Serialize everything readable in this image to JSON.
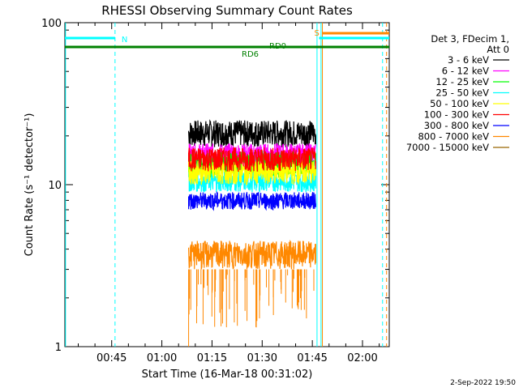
{
  "chart_data": {
    "type": "line",
    "title": "RHESSI Observing Summary Count Rates",
    "xlabel": "Start Time (16-Mar-18 00:31:02)",
    "ylabel": "Count Rate (s⁻¹ detector⁻¹)",
    "yscale": "log",
    "ylim": [
      1,
      100
    ],
    "xlim": [
      "00:31",
      "02:08"
    ],
    "x_ticks": [
      "00:45",
      "01:00",
      "01:15",
      "01:30",
      "01:45",
      "02:00"
    ],
    "y_ticks": [
      "1",
      "10",
      "100"
    ],
    "legend_title": [
      "Det 3, FDecim 1,",
      "Att 0"
    ],
    "legend_position": "right",
    "data_window": [
      "01:08",
      "01:46"
    ],
    "series": [
      {
        "name": "3 - 6 keV",
        "color": "#000000",
        "range": [
          17,
          25
        ]
      },
      {
        "name": "6 - 12 keV",
        "color": "#ff00ff",
        "range": [
          13,
          18
        ]
      },
      {
        "name": "12 - 25 keV",
        "color": "#00ff00",
        "range": [
          11,
          16
        ]
      },
      {
        "name": "25 - 50 keV",
        "color": "#00ffff",
        "range": [
          9,
          12
        ]
      },
      {
        "name": "50 - 100 keV",
        "color": "#ffff00",
        "range": [
          10,
          14
        ]
      },
      {
        "name": "100 - 300 keV",
        "color": "#ff0000",
        "range": [
          12,
          17
        ]
      },
      {
        "name": "300 - 800 keV",
        "color": "#0000ff",
        "range": [
          7,
          9
        ]
      },
      {
        "name": "800 - 7000 keV",
        "color": "#ff8800",
        "range": [
          3,
          4.5
        ]
      },
      {
        "name": "7000 - 15000 keV",
        "color": "#996600",
        "range": [
          0,
          0
        ]
      }
    ],
    "annotations": [
      {
        "text": "N",
        "color": "#00ffff"
      },
      {
        "text": "S",
        "color": "#ff8800"
      },
      {
        "text": "RD6",
        "color": "#008000"
      },
      {
        "text": "RD0",
        "color": "#008000"
      }
    ],
    "footer": "2-Sep-2022 19:50"
  }
}
